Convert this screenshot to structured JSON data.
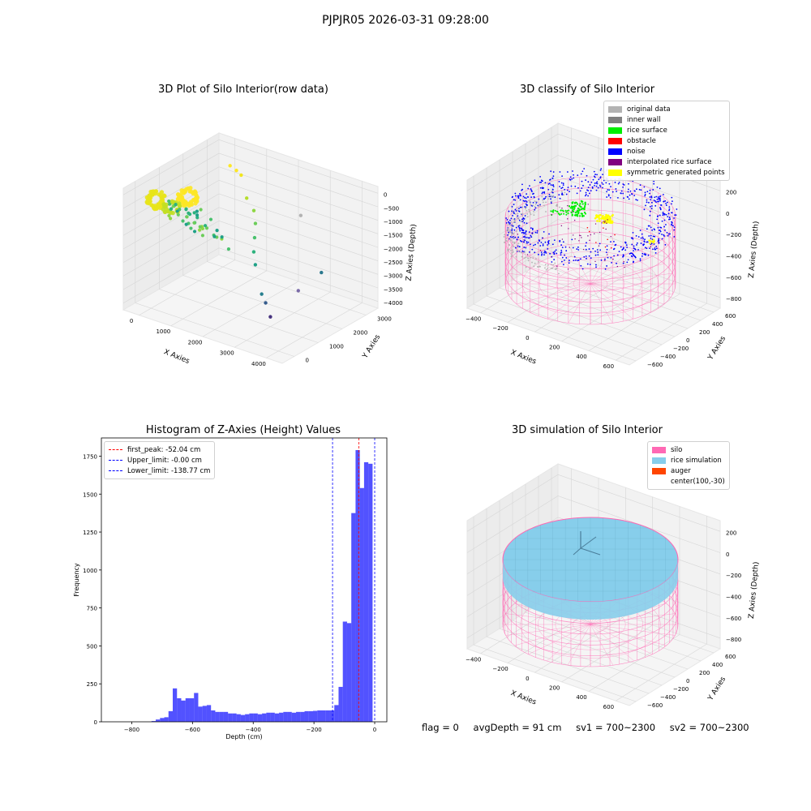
{
  "suptitle": "PJPJR05 2026-03-31 09:28:00",
  "status": {
    "flag": "flag = 0",
    "avg_depth": "avgDepth = 91 cm",
    "sv1": "sv1 = 700~2300",
    "sv2": "sv2 = 700~2300"
  },
  "chart_data": [
    {
      "type": "scatter",
      "title": "3D Plot of Silo Interior(row data)",
      "xlabel": "X Axies",
      "ylabel": "Y Axies",
      "zlabel": "Z Axies (Depth)",
      "x_ticks": [
        "0",
        "1000",
        "2000",
        "3000",
        "4000"
      ],
      "y_ticks": [
        "0",
        "1000",
        "2000",
        "3000"
      ],
      "z_ticks": [
        "0",
        "−500",
        "−1000",
        "−1500",
        "−2000",
        "−2500",
        "−3000",
        "−3500",
        "−4000"
      ],
      "colormap": "viridis",
      "points_estimated": [
        {
          "x": 300,
          "y": 2900,
          "z": -300,
          "c": "#fde725"
        },
        {
          "x": 500,
          "y": 2900,
          "z": -400,
          "c": "#fde725"
        },
        {
          "x": 800,
          "y": 2700,
          "z": -350,
          "c": "#f1e51d"
        },
        {
          "x": 1200,
          "y": 2400,
          "z": -900,
          "c": "#b5de2b"
        },
        {
          "x": 1500,
          "y": 2300,
          "z": -1200,
          "c": "#8fd744"
        },
        {
          "x": 1700,
          "y": 2100,
          "z": -1500,
          "c": "#6ccd5a"
        },
        {
          "x": 1900,
          "y": 1800,
          "z": -1800,
          "c": "#4ac16d"
        },
        {
          "x": 2100,
          "y": 1500,
          "z": -2100,
          "c": "#2db27d"
        },
        {
          "x": 2300,
          "y": 1300,
          "z": -2400,
          "c": "#1fa187"
        },
        {
          "x": 2800,
          "y": 900,
          "z": -3100,
          "c": "#277f8e"
        },
        {
          "x": 3000,
          "y": 800,
          "z": -3300,
          "c": "#365c8d"
        },
        {
          "x": 3300,
          "y": 600,
          "z": -3600,
          "c": "#46327e"
        },
        {
          "x": 3500,
          "y": 1500,
          "z": -3000,
          "c": "#7b6ba8"
        },
        {
          "x": 3700,
          "y": 2200,
          "z": -2600,
          "c": "#2a788e"
        },
        {
          "x": 2600,
          "y": 2800,
          "z": -1200,
          "c": "#b3b3b3"
        }
      ]
    },
    {
      "type": "scatter",
      "title": "3D classify of Silo Interior",
      "xlabel": "X Axies",
      "ylabel": "Y Axies",
      "zlabel": "Z Axies (Depth)",
      "x_ticks": [
        "−400",
        "−200",
        "0",
        "200",
        "400",
        "600"
      ],
      "y_ticks": [
        "−600",
        "−400",
        "−200",
        "0",
        "200",
        "400",
        "600"
      ],
      "z_ticks": [
        "200",
        "0",
        "−200",
        "−400",
        "−600",
        "−800"
      ],
      "legend": [
        {
          "label": "original data",
          "color": "#b3b3b3"
        },
        {
          "label": "inner wall",
          "color": "#808080"
        },
        {
          "label": "rice surface",
          "color": "#00ee00"
        },
        {
          "label": "obstacle",
          "color": "#ff0000"
        },
        {
          "label": "noise",
          "color": "#0000ff"
        },
        {
          "label": "interpolated rice surface",
          "color": "#800080"
        },
        {
          "label": "symmetric generated points",
          "color": "#ffff00"
        }
      ],
      "legend_loc": "upper right",
      "silo_radius_approx": 600,
      "silo_depth_approx": 900
    },
    {
      "type": "bar",
      "title": "Histogram of Z-Axies (Height) Values",
      "xlabel": "Depth (cm)",
      "ylabel": "Frequency",
      "xlim": [
        -900,
        40
      ],
      "ylim": [
        0,
        1870
      ],
      "x_ticks": [
        -800,
        -600,
        -400,
        -200,
        0
      ],
      "x_tick_labels": [
        "−800",
        "−600",
        "−400",
        "−200",
        "0"
      ],
      "y_ticks": [
        0,
        250,
        500,
        750,
        1000,
        1250,
        1500,
        1750
      ],
      "bar_color": "#0000ff",
      "bin_width": 14,
      "bins": [
        {
          "x": -728,
          "v": 5
        },
        {
          "x": -714,
          "v": 15
        },
        {
          "x": -700,
          "v": 25
        },
        {
          "x": -686,
          "v": 30
        },
        {
          "x": -672,
          "v": 70
        },
        {
          "x": -658,
          "v": 220
        },
        {
          "x": -644,
          "v": 155
        },
        {
          "x": -630,
          "v": 140
        },
        {
          "x": -616,
          "v": 155
        },
        {
          "x": -602,
          "v": 155
        },
        {
          "x": -588,
          "v": 190
        },
        {
          "x": -574,
          "v": 100
        },
        {
          "x": -560,
          "v": 105
        },
        {
          "x": -546,
          "v": 110
        },
        {
          "x": -532,
          "v": 75
        },
        {
          "x": -518,
          "v": 65
        },
        {
          "x": -504,
          "v": 65
        },
        {
          "x": -490,
          "v": 65
        },
        {
          "x": -476,
          "v": 55
        },
        {
          "x": -462,
          "v": 55
        },
        {
          "x": -448,
          "v": 50
        },
        {
          "x": -434,
          "v": 45
        },
        {
          "x": -420,
          "v": 50
        },
        {
          "x": -406,
          "v": 55
        },
        {
          "x": -392,
          "v": 55
        },
        {
          "x": -378,
          "v": 50
        },
        {
          "x": -364,
          "v": 55
        },
        {
          "x": -350,
          "v": 60
        },
        {
          "x": -336,
          "v": 60
        },
        {
          "x": -322,
          "v": 55
        },
        {
          "x": -308,
          "v": 60
        },
        {
          "x": -294,
          "v": 65
        },
        {
          "x": -280,
          "v": 65
        },
        {
          "x": -266,
          "v": 60
        },
        {
          "x": -252,
          "v": 65
        },
        {
          "x": -238,
          "v": 65
        },
        {
          "x": -224,
          "v": 70
        },
        {
          "x": -210,
          "v": 70
        },
        {
          "x": -196,
          "v": 72
        },
        {
          "x": -182,
          "v": 75
        },
        {
          "x": -168,
          "v": 75
        },
        {
          "x": -154,
          "v": 75
        },
        {
          "x": -140,
          "v": 75
        },
        {
          "x": -126,
          "v": 110
        },
        {
          "x": -112,
          "v": 230
        },
        {
          "x": -98,
          "v": 660
        },
        {
          "x": -84,
          "v": 650
        },
        {
          "x": -70,
          "v": 1375
        },
        {
          "x": -56,
          "v": 1790
        },
        {
          "x": -42,
          "v": 1540
        },
        {
          "x": -28,
          "v": 1710
        },
        {
          "x": -14,
          "v": 1700
        }
      ],
      "vlines": [
        {
          "label": "first_peak: -52.04 cm",
          "x": -52.04,
          "color": "#ff0000"
        },
        {
          "label": "Upper_limit: -0.00 cm",
          "x": 0,
          "color": "#0000ff"
        },
        {
          "label": "Lower_limit: -138.77 cm",
          "x": -138.77,
          "color": "#0000ff"
        }
      ],
      "legend_loc": "upper left"
    },
    {
      "type": "area",
      "title": "3D simulation of Silo Interior",
      "xlabel": "X Axies",
      "ylabel": "Y Axies",
      "zlabel": "Z Axies (Depth)",
      "x_ticks": [
        "−400",
        "−200",
        "0",
        "200",
        "400",
        "600"
      ],
      "y_ticks": [
        "−600",
        "−400",
        "−200",
        "0",
        "200",
        "400",
        "600"
      ],
      "z_ticks": [
        "200",
        "0",
        "−200",
        "−400",
        "−600",
        "−800"
      ],
      "legend": [
        {
          "label": "silo",
          "color": "#ff69b4"
        },
        {
          "label": "rice simulation",
          "color": "#87ceeb"
        },
        {
          "label": "auger",
          "color": "#ff4500"
        },
        {
          "label": "center(100,-30)",
          "color": ""
        }
      ],
      "legend_loc": "upper right"
    }
  ]
}
